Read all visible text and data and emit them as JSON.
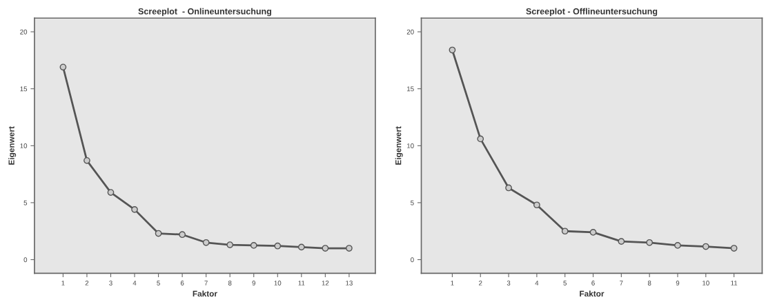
{
  "chart_data": [
    {
      "type": "line",
      "title": "Screeplot  - Onlineuntersuchung",
      "xlabel": "Faktor",
      "ylabel": "Eigenwert",
      "x": [
        1,
        2,
        3,
        4,
        5,
        6,
        7,
        8,
        9,
        10,
        11,
        12,
        13
      ],
      "series": [
        {
          "color": "#555555",
          "values": [
            16.9,
            8.7,
            5.9,
            4.4,
            2.3,
            2.2,
            1.5,
            1.3,
            1.25,
            1.2,
            1.1,
            1.0,
            1.0
          ]
        }
      ],
      "xlim": [
        -0.2,
        14.1
      ],
      "xticks": [
        1,
        2,
        3,
        4,
        5,
        6,
        7,
        8,
        9,
        10,
        11,
        12,
        13
      ],
      "ylim": [
        -1.2,
        21.2
      ],
      "yticks": [
        0,
        5,
        10,
        15,
        20
      ],
      "grid": false,
      "marker": "circle",
      "line_style": "solid"
    },
    {
      "type": "line",
      "title": "Screeplot - Offlineuntersuchung",
      "xlabel": "Faktor",
      "ylabel": "Eigenwert",
      "x": [
        1,
        2,
        3,
        4,
        5,
        6,
        7,
        8,
        9,
        10,
        11
      ],
      "series": [
        {
          "color": "#555555",
          "values": [
            18.4,
            10.6,
            6.3,
            4.8,
            2.5,
            2.4,
            1.6,
            1.5,
            1.25,
            1.15,
            1.0
          ]
        }
      ],
      "xlim": [
        -0.1,
        12.0
      ],
      "xticks": [
        1,
        2,
        3,
        4,
        5,
        6,
        7,
        8,
        9,
        10,
        11
      ],
      "ylim": [
        -1.2,
        21.2
      ],
      "yticks": [
        0,
        5,
        10,
        15,
        20
      ],
      "grid": false,
      "marker": "circle",
      "line_style": "solid"
    }
  ]
}
